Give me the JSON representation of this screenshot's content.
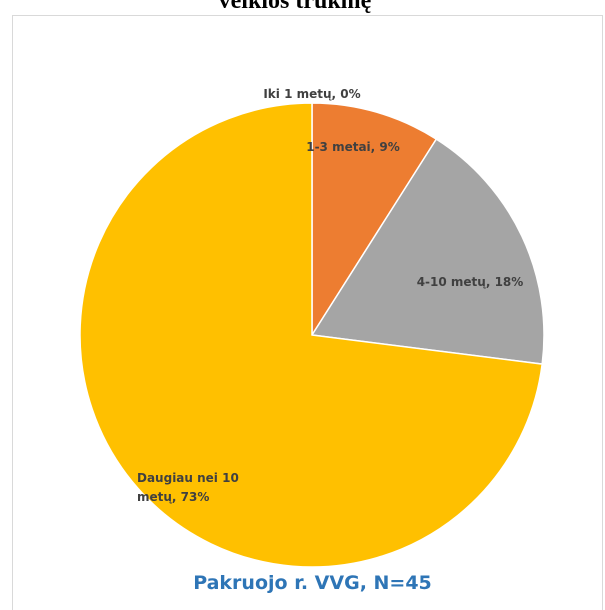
{
  "chart_data": {
    "type": "pie",
    "heading": "veiklos trukmę",
    "title": "Pakruojo r. VVG, N=45",
    "categories": [
      "Iki 1 metų",
      "1-3 metai",
      "4-10 metų",
      "Daugiau nei 10 metų"
    ],
    "values": [
      0,
      9,
      18,
      73
    ],
    "value_labels": [
      "Iki 1 metų, 0%",
      "1-3 metai, 9%",
      "4-10 metų, 18%",
      "Daugiau nei 10 metų, 73%"
    ],
    "colors": [
      "#4472C4",
      "#ED7D31",
      "#A5A5A5",
      "#FFC000"
    ]
  }
}
